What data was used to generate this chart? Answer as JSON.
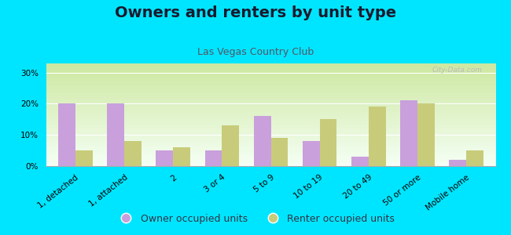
{
  "title": "Owners and renters by unit type",
  "subtitle": "Las Vegas Country Club",
  "categories": [
    "1, detached",
    "1, attached",
    "2",
    "3 or 4",
    "5 to 9",
    "10 to 19",
    "20 to 49",
    "50 or more",
    "Mobile home"
  ],
  "owner_values": [
    20,
    20,
    5,
    5,
    16,
    8,
    3,
    21,
    2
  ],
  "renter_values": [
    5,
    8,
    6,
    13,
    9,
    15,
    19,
    20,
    5
  ],
  "owner_color": "#c9a0dc",
  "renter_color": "#c8cc7a",
  "background_outer": "#00e5ff",
  "background_plot_top": "#cde8a0",
  "background_plot_bottom": "#f5fff5",
  "yticks": [
    0,
    10,
    20,
    30
  ],
  "ylim": [
    0,
    33
  ],
  "bar_width": 0.35,
  "legend_owner": "Owner occupied units",
  "legend_renter": "Renter occupied units",
  "title_fontsize": 14,
  "subtitle_fontsize": 9,
  "tick_fontsize": 7.5,
  "legend_fontsize": 9
}
